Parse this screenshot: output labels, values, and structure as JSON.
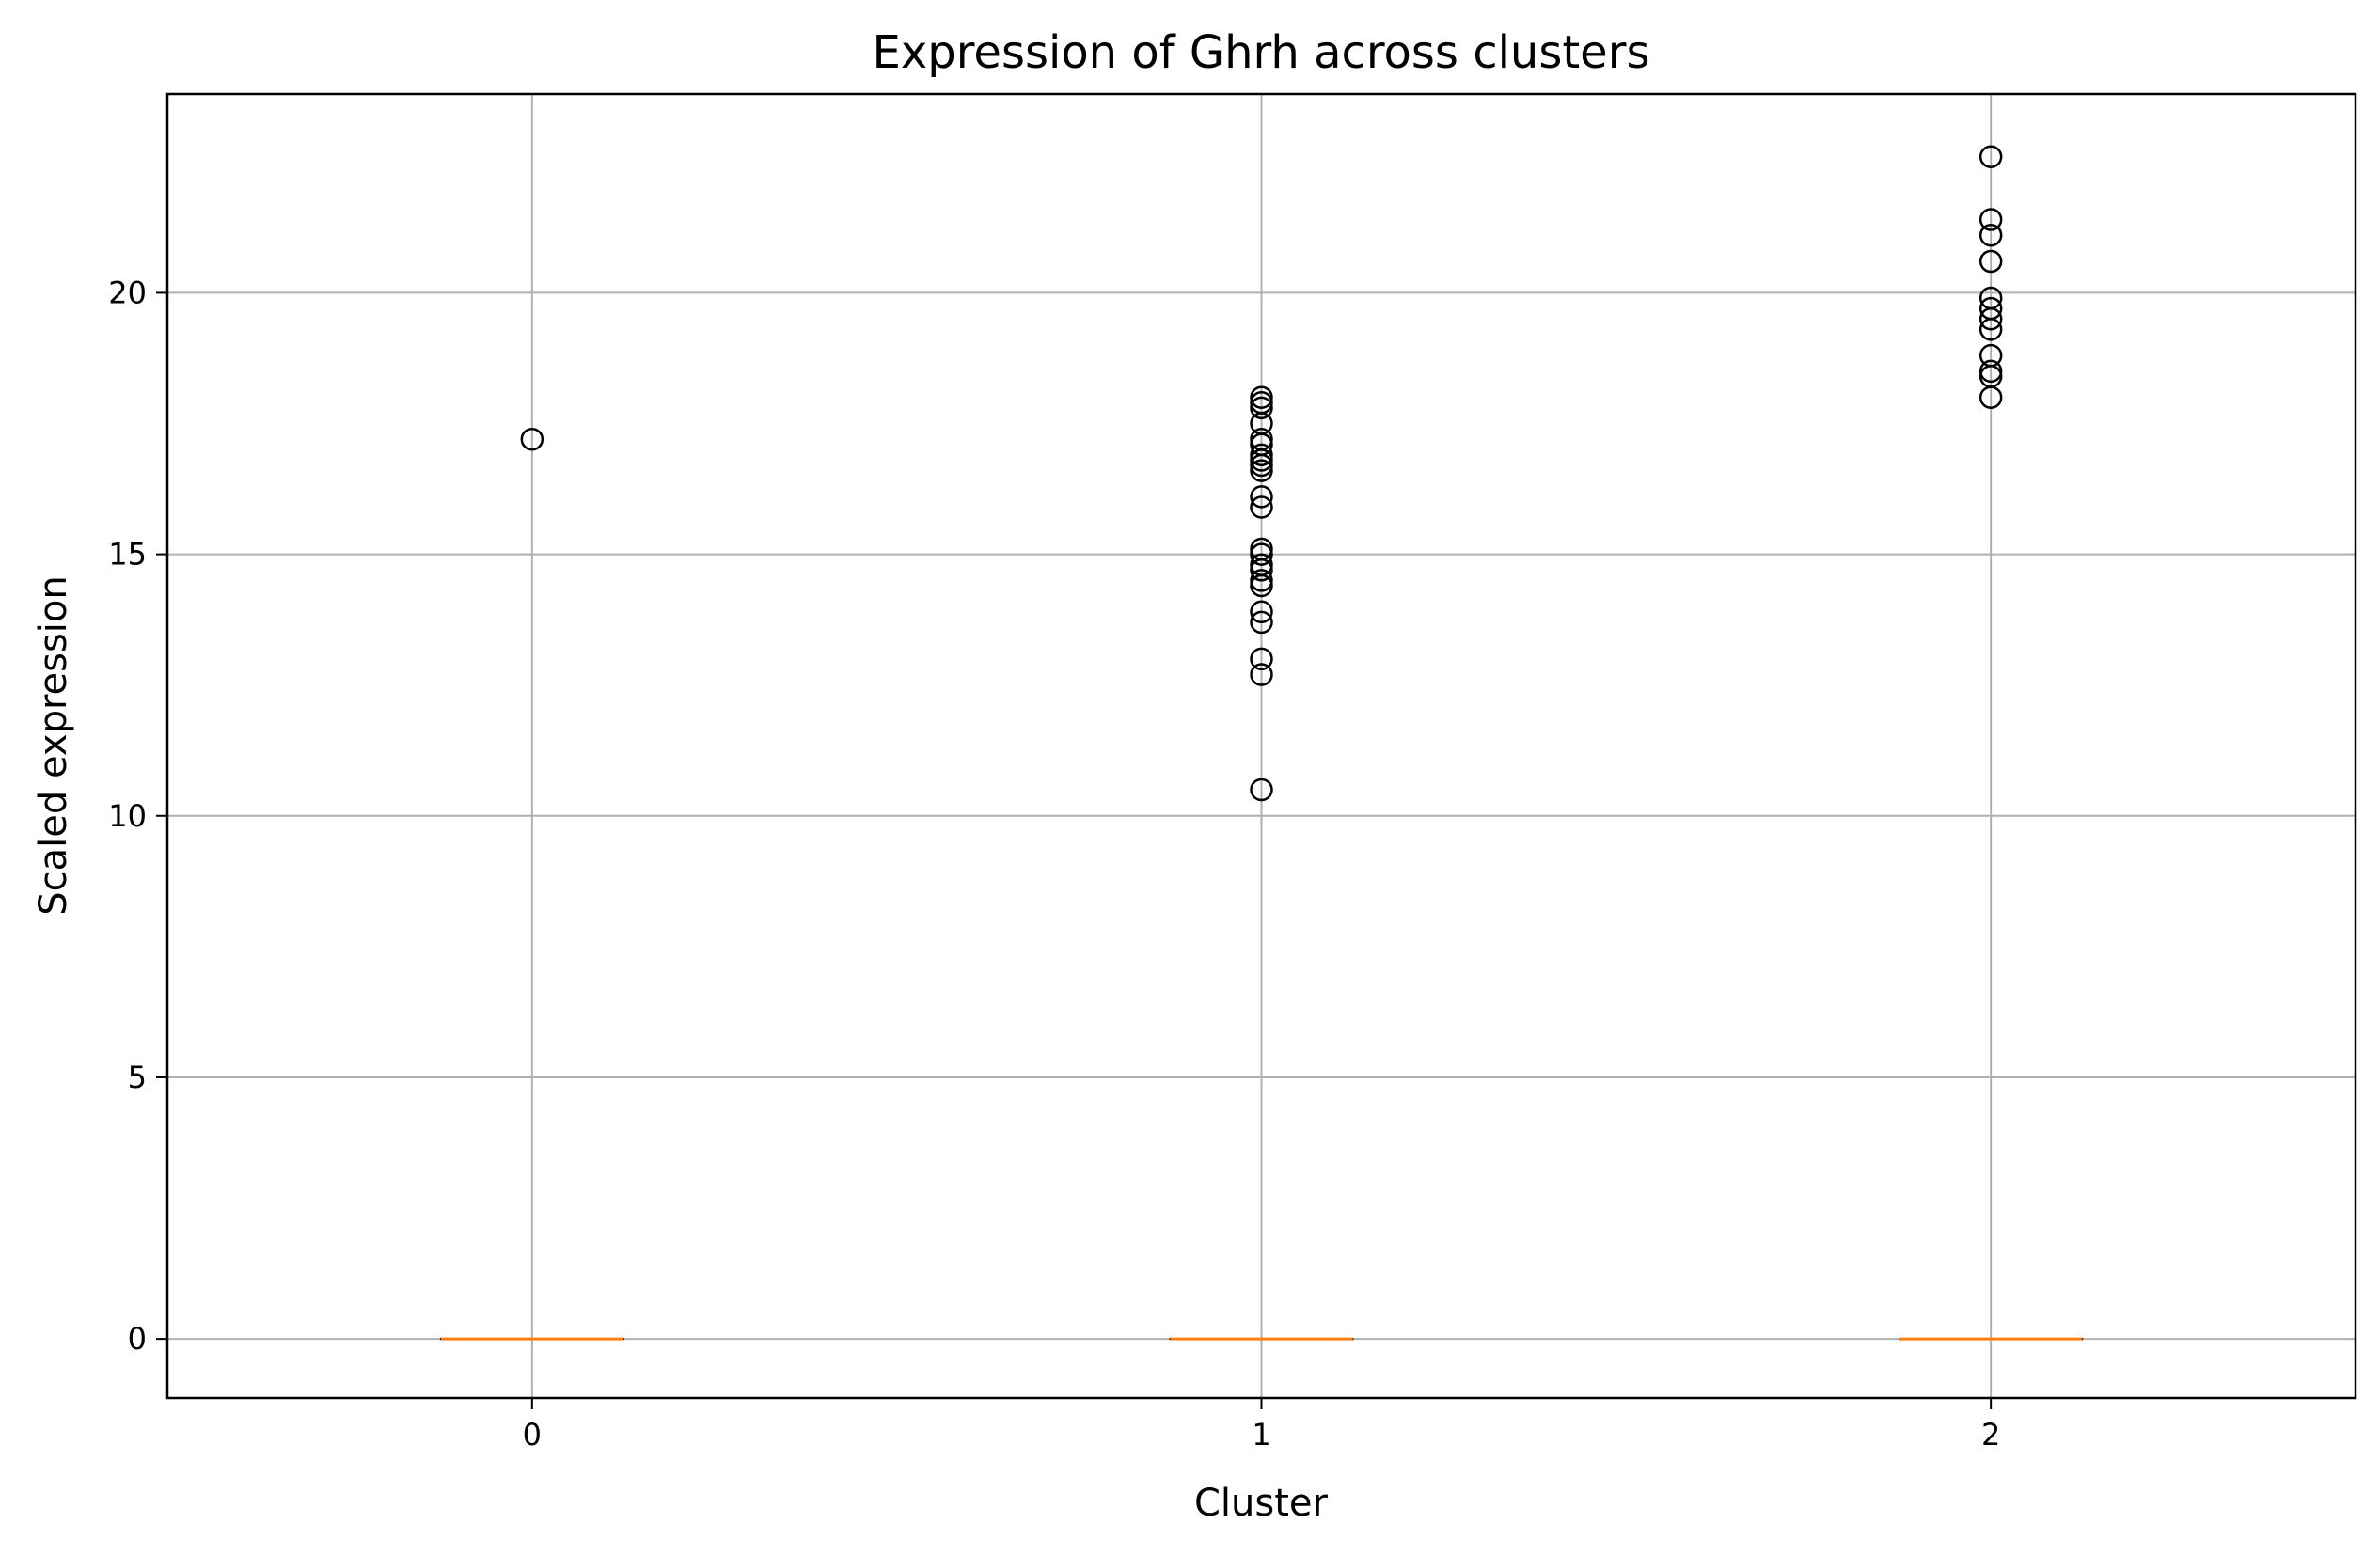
{
  "chart_data": {
    "type": "box",
    "title": "Expression of Ghrh across clusters",
    "xlabel": "Cluster",
    "ylabel": "Scaled expression",
    "categories": [
      "0",
      "1",
      "2"
    ],
    "xlim": [
      -0.5,
      2.5
    ],
    "ylim": [
      -1.13,
      23.8
    ],
    "yticks": [
      0,
      5,
      10,
      15,
      20
    ],
    "grid": true,
    "colors": {
      "median": "#ff7f0e",
      "grid": "#b0b0b0",
      "box": "#000000",
      "flier": "#000000"
    },
    "boxes": [
      {
        "category": "0",
        "q1": 0,
        "median": 0,
        "q3": 0,
        "whisker_low": 0,
        "whisker_high": 0,
        "outliers": [
          17.2
        ]
      },
      {
        "category": "1",
        "q1": 0,
        "median": 0,
        "q3": 0,
        "whisker_low": 0,
        "whisker_high": 0,
        "outliers": [
          10.5,
          12.7,
          13.0,
          13.7,
          13.9,
          14.4,
          14.5,
          14.7,
          14.8,
          15.0,
          15.1,
          15.9,
          16.1,
          16.6,
          16.7,
          16.8,
          16.9,
          17.1,
          17.2,
          17.5,
          17.8,
          17.9,
          18.0
        ]
      },
      {
        "category": "2",
        "q1": 0,
        "median": 0,
        "q3": 0,
        "whisker_low": 0,
        "whisker_high": 0,
        "outliers": [
          18.0,
          18.4,
          18.5,
          18.8,
          19.3,
          19.5,
          19.7,
          19.9,
          20.6,
          21.1,
          21.4,
          22.6
        ]
      }
    ]
  }
}
